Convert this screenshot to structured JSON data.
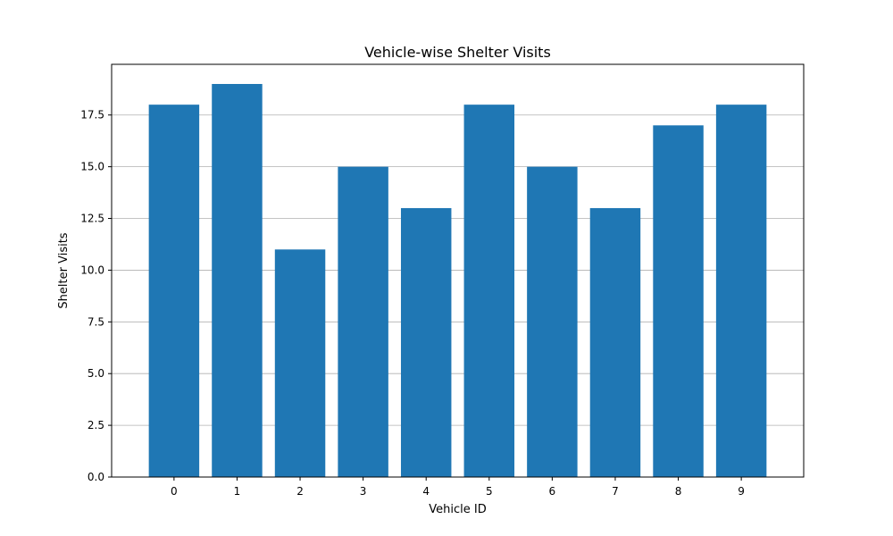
{
  "chart_data": {
    "type": "bar",
    "title": "Vehicle-wise Shelter Visits",
    "xlabel": "Vehicle ID",
    "ylabel": "Shelter Visits",
    "categories": [
      "0",
      "1",
      "2",
      "3",
      "4",
      "5",
      "6",
      "7",
      "8",
      "9"
    ],
    "values": [
      18,
      19,
      11,
      15,
      13,
      18,
      15,
      13,
      17,
      18
    ],
    "ylim": [
      0,
      19.95
    ],
    "yticks": [
      "0.0",
      "2.5",
      "5.0",
      "7.5",
      "10.0",
      "12.5",
      "15.0",
      "17.5"
    ],
    "grid": "y",
    "bar_color": "#1f77b4",
    "grid_color": "#b0b0b0",
    "legend": "none"
  }
}
